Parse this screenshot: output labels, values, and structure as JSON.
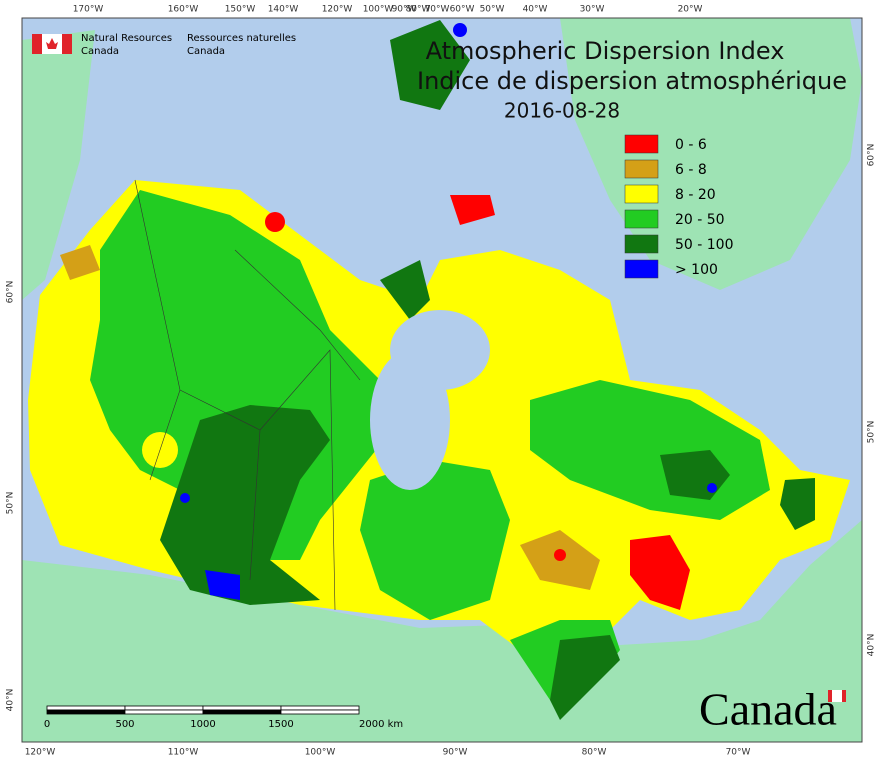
{
  "header": {
    "agency_en": [
      "Natural Resources",
      "Canada"
    ],
    "agency_fr": [
      "Ressources naturelles",
      "Canada"
    ]
  },
  "title": [
    "Atmospheric Dispersion Index",
    "Indice de dispersion atmosphérique"
  ],
  "date": "2016-08-28",
  "legend": [
    {
      "label": "0 - 6",
      "color": "#ff0000"
    },
    {
      "label": "6 - 8",
      "color": "#d4a017"
    },
    {
      "label": "8 - 20",
      "color": "#ffff00"
    },
    {
      "label": "20 - 50",
      "color": "#22cc22"
    },
    {
      "label": "50 - 100",
      "color": "#117711"
    },
    {
      "label": "> 100",
      "color": "#0000ff"
    }
  ],
  "graticule": {
    "top": [
      "170°W",
      "160°W",
      "150°W",
      "140°W",
      "120°W",
      "100°W",
      "90°W",
      "80°W",
      "70°W",
      "60°W",
      "50°W",
      "40°W",
      "30°W",
      "20°W"
    ],
    "bottom": [
      "120°W",
      "110°W",
      "100°W",
      "90°W",
      "80°W",
      "70°W"
    ],
    "left": [
      "60°N",
      "50°N",
      "40°N"
    ],
    "right": [
      "60°N",
      "50°N",
      "40°N"
    ]
  },
  "scale_bar": {
    "labels": [
      "0",
      "500",
      "1000",
      "1500",
      "2000 km"
    ]
  },
  "wordmark": "Canada"
}
